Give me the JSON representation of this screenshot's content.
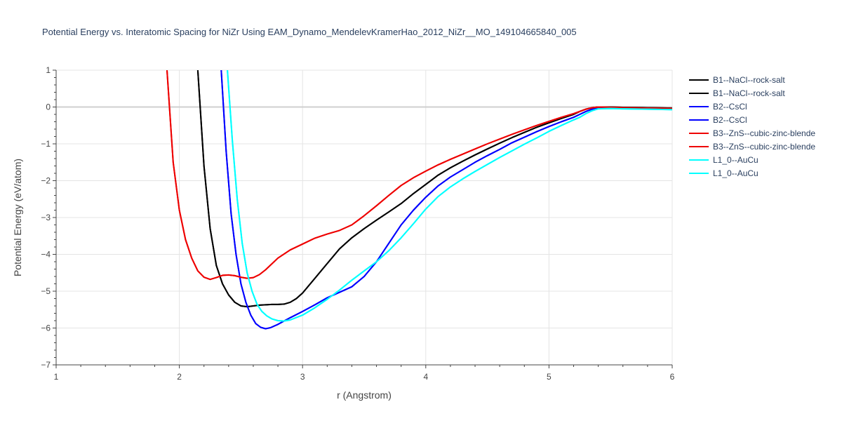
{
  "chart_data": {
    "type": "line",
    "title": "Potential Energy vs. Interatomic Spacing for NiZr Using EAM_Dynamo_MendelevKramerHao_2012_NiZr__MO_149104665840_005",
    "xlabel": "r (Angstrom)",
    "ylabel": "Potential Energy (eV/atom)",
    "xlim": [
      1,
      6
    ],
    "ylim": [
      -7,
      1
    ],
    "xticks": [
      1,
      2,
      3,
      4,
      5,
      6
    ],
    "yticks": [
      -7,
      -6,
      -5,
      -4,
      -3,
      -2,
      -1,
      0,
      1
    ],
    "xtick_labels": [
      "1",
      "2",
      "3",
      "4",
      "5",
      "6"
    ],
    "ytick_labels": [
      "−7",
      "−6",
      "−5",
      "−4",
      "−3",
      "−2",
      "−1",
      "0",
      "1"
    ],
    "grid": true,
    "legend": "right",
    "series": [
      {
        "name": "B1--NaCl--rock-salt",
        "color": "#000000",
        "x": [
          2.15,
          2.2,
          2.25,
          2.3,
          2.35,
          2.4,
          2.45,
          2.5,
          2.55,
          2.6,
          2.65,
          2.7,
          2.75,
          2.8,
          2.85,
          2.9,
          2.95,
          3.0,
          3.05,
          3.1,
          3.2,
          3.3,
          3.4,
          3.5,
          3.6,
          3.7,
          3.8,
          3.9,
          4.0,
          4.1,
          4.2,
          4.3,
          4.4,
          4.5,
          4.6,
          4.7,
          4.8,
          4.9,
          5.0,
          5.1,
          5.2,
          5.25,
          5.3,
          5.35,
          5.4,
          5.5,
          5.6,
          5.8,
          6.0
        ],
        "y": [
          1.0,
          -1.6,
          -3.3,
          -4.3,
          -4.8,
          -5.1,
          -5.3,
          -5.4,
          -5.42,
          -5.4,
          -5.38,
          -5.37,
          -5.36,
          -5.36,
          -5.35,
          -5.3,
          -5.2,
          -5.05,
          -4.85,
          -4.65,
          -4.25,
          -3.85,
          -3.55,
          -3.3,
          -3.07,
          -2.85,
          -2.62,
          -2.35,
          -2.1,
          -1.85,
          -1.65,
          -1.47,
          -1.3,
          -1.14,
          -0.98,
          -0.83,
          -0.69,
          -0.55,
          -0.43,
          -0.31,
          -0.2,
          -0.12,
          -0.06,
          -0.02,
          0.0,
          0.0,
          -0.01,
          -0.02,
          -0.03
        ]
      },
      {
        "name": "B1--NaCl--rock-salt",
        "color": "#000000",
        "x": [
          2.15,
          2.2,
          2.25,
          2.3,
          2.35,
          2.4,
          2.45,
          2.5,
          2.55,
          2.6,
          2.65,
          2.7,
          2.75,
          2.8,
          2.85,
          2.9,
          2.95,
          3.0,
          3.05,
          3.1,
          3.2,
          3.3,
          3.4,
          3.5,
          3.6,
          3.7,
          3.8,
          3.9,
          4.0,
          4.1,
          4.2,
          4.3,
          4.4,
          4.5,
          4.6,
          4.7,
          4.8,
          4.9,
          5.0,
          5.1,
          5.2,
          5.25,
          5.3,
          5.35,
          5.4,
          5.5,
          5.6,
          5.8,
          6.0
        ],
        "y": [
          1.0,
          -1.6,
          -3.3,
          -4.3,
          -4.8,
          -5.1,
          -5.3,
          -5.4,
          -5.42,
          -5.4,
          -5.38,
          -5.37,
          -5.36,
          -5.36,
          -5.35,
          -5.3,
          -5.2,
          -5.05,
          -4.85,
          -4.65,
          -4.25,
          -3.85,
          -3.55,
          -3.3,
          -3.07,
          -2.85,
          -2.62,
          -2.35,
          -2.1,
          -1.85,
          -1.65,
          -1.47,
          -1.3,
          -1.14,
          -0.98,
          -0.83,
          -0.69,
          -0.55,
          -0.43,
          -0.31,
          -0.2,
          -0.12,
          -0.06,
          -0.02,
          0.0,
          0.0,
          -0.01,
          -0.02,
          -0.03
        ]
      },
      {
        "name": "B2--CsCl",
        "color": "#0000ff",
        "x": [
          2.34,
          2.38,
          2.42,
          2.46,
          2.5,
          2.54,
          2.58,
          2.62,
          2.66,
          2.7,
          2.74,
          2.8,
          2.9,
          3.0,
          3.1,
          3.2,
          3.3,
          3.4,
          3.5,
          3.6,
          3.7,
          3.8,
          3.9,
          4.0,
          4.1,
          4.2,
          4.3,
          4.4,
          4.5,
          4.6,
          4.7,
          4.8,
          4.9,
          5.0,
          5.1,
          5.2,
          5.25,
          5.3,
          5.35,
          5.4,
          5.5,
          5.6,
          5.8,
          6.0
        ],
        "y": [
          1.0,
          -1.2,
          -2.9,
          -4.0,
          -4.8,
          -5.3,
          -5.65,
          -5.88,
          -5.98,
          -6.02,
          -5.99,
          -5.9,
          -5.72,
          -5.55,
          -5.37,
          -5.18,
          -5.03,
          -4.88,
          -4.6,
          -4.2,
          -3.7,
          -3.2,
          -2.8,
          -2.45,
          -2.14,
          -1.9,
          -1.7,
          -1.5,
          -1.32,
          -1.15,
          -0.97,
          -0.82,
          -0.67,
          -0.53,
          -0.4,
          -0.28,
          -0.2,
          -0.12,
          -0.06,
          -0.02,
          -0.02,
          -0.03,
          -0.04,
          -0.05
        ]
      },
      {
        "name": "B2--CsCl",
        "color": "#0000ff",
        "x": [
          2.34,
          2.38,
          2.42,
          2.46,
          2.5,
          2.54,
          2.58,
          2.62,
          2.66,
          2.7,
          2.74,
          2.8,
          2.9,
          3.0,
          3.1,
          3.2,
          3.3,
          3.4,
          3.5,
          3.6,
          3.7,
          3.8,
          3.9,
          4.0,
          4.1,
          4.2,
          4.3,
          4.4,
          4.5,
          4.6,
          4.7,
          4.8,
          4.9,
          5.0,
          5.1,
          5.2,
          5.25,
          5.3,
          5.35,
          5.4,
          5.5,
          5.6,
          5.8,
          6.0
        ],
        "y": [
          1.0,
          -1.2,
          -2.9,
          -4.0,
          -4.8,
          -5.3,
          -5.65,
          -5.88,
          -5.98,
          -6.02,
          -5.99,
          -5.9,
          -5.72,
          -5.55,
          -5.37,
          -5.18,
          -5.03,
          -4.88,
          -4.6,
          -4.2,
          -3.7,
          -3.2,
          -2.8,
          -2.45,
          -2.14,
          -1.9,
          -1.7,
          -1.5,
          -1.32,
          -1.15,
          -0.97,
          -0.82,
          -0.67,
          -0.53,
          -0.4,
          -0.28,
          -0.2,
          -0.12,
          -0.06,
          -0.02,
          -0.02,
          -0.03,
          -0.04,
          -0.05
        ]
      },
      {
        "name": "B3--ZnS--cubic-zinc-blende",
        "color": "#ee0000",
        "x": [
          1.9,
          1.95,
          2.0,
          2.05,
          2.1,
          2.15,
          2.2,
          2.25,
          2.3,
          2.35,
          2.4,
          2.45,
          2.5,
          2.55,
          2.6,
          2.65,
          2.7,
          2.8,
          2.9,
          3.0,
          3.1,
          3.2,
          3.3,
          3.4,
          3.5,
          3.6,
          3.7,
          3.8,
          3.9,
          4.0,
          4.1,
          4.2,
          4.3,
          4.4,
          4.5,
          4.6,
          4.7,
          4.8,
          4.9,
          5.0,
          5.1,
          5.2,
          5.25,
          5.3,
          5.35,
          5.4,
          5.5,
          5.6,
          5.8,
          6.0
        ],
        "y": [
          1.0,
          -1.5,
          -2.8,
          -3.6,
          -4.1,
          -4.45,
          -4.62,
          -4.68,
          -4.63,
          -4.57,
          -4.56,
          -4.58,
          -4.62,
          -4.65,
          -4.63,
          -4.55,
          -4.42,
          -4.1,
          -3.88,
          -3.72,
          -3.56,
          -3.45,
          -3.35,
          -3.2,
          -2.95,
          -2.68,
          -2.4,
          -2.13,
          -1.92,
          -1.74,
          -1.57,
          -1.42,
          -1.28,
          -1.14,
          -1.0,
          -0.87,
          -0.74,
          -0.62,
          -0.5,
          -0.39,
          -0.28,
          -0.18,
          -0.12,
          -0.06,
          -0.02,
          0.0,
          -0.01,
          -0.02,
          -0.03,
          -0.04
        ]
      },
      {
        "name": "B3--ZnS--cubic-zinc-blende",
        "color": "#ee0000",
        "x": [
          1.9,
          1.95,
          2.0,
          2.05,
          2.1,
          2.15,
          2.2,
          2.25,
          2.3,
          2.35,
          2.4,
          2.45,
          2.5,
          2.55,
          2.6,
          2.65,
          2.7,
          2.8,
          2.9,
          3.0,
          3.1,
          3.2,
          3.3,
          3.4,
          3.5,
          3.6,
          3.7,
          3.8,
          3.9,
          4.0,
          4.1,
          4.2,
          4.3,
          4.4,
          4.5,
          4.6,
          4.7,
          4.8,
          4.9,
          5.0,
          5.1,
          5.2,
          5.25,
          5.3,
          5.35,
          5.4,
          5.5,
          5.6,
          5.8,
          6.0
        ],
        "y": [
          1.0,
          -1.5,
          -2.8,
          -3.6,
          -4.1,
          -4.45,
          -4.62,
          -4.68,
          -4.63,
          -4.57,
          -4.56,
          -4.58,
          -4.62,
          -4.65,
          -4.63,
          -4.55,
          -4.42,
          -4.1,
          -3.88,
          -3.72,
          -3.56,
          -3.45,
          -3.35,
          -3.2,
          -2.95,
          -2.68,
          -2.4,
          -2.13,
          -1.92,
          -1.74,
          -1.57,
          -1.42,
          -1.28,
          -1.14,
          -1.0,
          -0.87,
          -0.74,
          -0.62,
          -0.5,
          -0.39,
          -0.28,
          -0.18,
          -0.12,
          -0.06,
          -0.02,
          0.0,
          -0.01,
          -0.02,
          -0.03,
          -0.04
        ]
      },
      {
        "name": "L1_0--AuCu",
        "color": "#00ffff",
        "x": [
          2.39,
          2.43,
          2.47,
          2.51,
          2.55,
          2.59,
          2.63,
          2.67,
          2.71,
          2.75,
          2.8,
          2.85,
          2.9,
          3.0,
          3.1,
          3.2,
          3.3,
          3.4,
          3.5,
          3.6,
          3.7,
          3.8,
          3.9,
          4.0,
          4.1,
          4.2,
          4.3,
          4.4,
          4.5,
          4.6,
          4.7,
          4.8,
          4.9,
          5.0,
          5.1,
          5.2,
          5.25,
          5.3,
          5.35,
          5.4,
          5.5,
          5.6,
          5.8,
          6.0
        ],
        "y": [
          1.0,
          -0.9,
          -2.5,
          -3.7,
          -4.5,
          -5.0,
          -5.35,
          -5.55,
          -5.67,
          -5.75,
          -5.8,
          -5.81,
          -5.78,
          -5.65,
          -5.45,
          -5.22,
          -4.97,
          -4.7,
          -4.45,
          -4.2,
          -3.9,
          -3.55,
          -3.17,
          -2.77,
          -2.43,
          -2.17,
          -1.95,
          -1.75,
          -1.56,
          -1.37,
          -1.19,
          -1.01,
          -0.84,
          -0.66,
          -0.5,
          -0.35,
          -0.28,
          -0.18,
          -0.1,
          -0.05,
          -0.04,
          -0.05,
          -0.06,
          -0.07
        ]
      },
      {
        "name": "L1_0--AuCu",
        "color": "#00ffff",
        "x": [
          2.39,
          2.43,
          2.47,
          2.51,
          2.55,
          2.59,
          2.63,
          2.67,
          2.71,
          2.75,
          2.8,
          2.85,
          2.9,
          3.0,
          3.1,
          3.2,
          3.3,
          3.4,
          3.5,
          3.6,
          3.7,
          3.8,
          3.9,
          4.0,
          4.1,
          4.2,
          4.3,
          4.4,
          4.5,
          4.6,
          4.7,
          4.8,
          4.9,
          5.0,
          5.1,
          5.2,
          5.25,
          5.3,
          5.35,
          5.4,
          5.5,
          5.6,
          5.8,
          6.0
        ],
        "y": [
          1.0,
          -0.9,
          -2.5,
          -3.7,
          -4.5,
          -5.0,
          -5.35,
          -5.55,
          -5.67,
          -5.75,
          -5.8,
          -5.81,
          -5.78,
          -5.65,
          -5.45,
          -5.22,
          -4.97,
          -4.7,
          -4.45,
          -4.2,
          -3.9,
          -3.55,
          -3.17,
          -2.77,
          -2.43,
          -2.17,
          -1.95,
          -1.75,
          -1.56,
          -1.37,
          -1.19,
          -1.01,
          -0.84,
          -0.66,
          -0.5,
          -0.35,
          -0.28,
          -0.18,
          -0.1,
          -0.05,
          -0.04,
          -0.05,
          -0.06,
          -0.07
        ]
      }
    ]
  }
}
